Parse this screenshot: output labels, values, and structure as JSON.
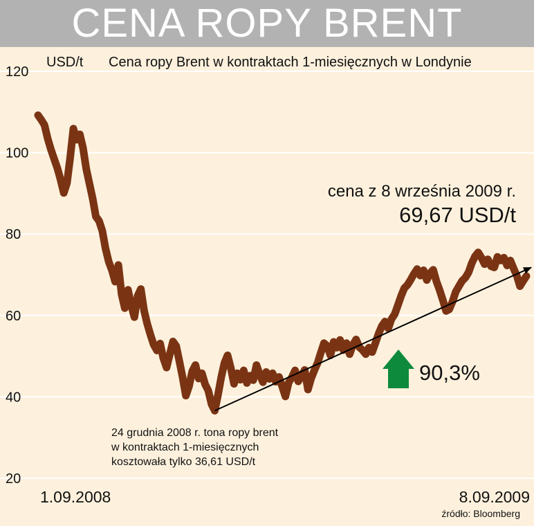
{
  "header": {
    "title": "CENA ROPY BRENT"
  },
  "chart_data": {
    "type": "line",
    "title": "Cena ropy Brent w kontraktach 1-miesięcznych w Londynie",
    "ylabel": "USD/t",
    "ylim": [
      20,
      120
    ],
    "yticks": [
      20,
      40,
      60,
      80,
      100,
      120
    ],
    "y_tick_labels": [
      "20",
      "40",
      "60",
      "80",
      "100",
      "120"
    ],
    "x_start_label": "1.09.2008",
    "x_end_label": "8.09.2009",
    "grid": "horizontal",
    "series": [
      {
        "values": [
          109.2,
          108.1,
          106.8,
          103.5,
          100.8,
          98.5,
          96.2,
          93.4,
          90.1,
          92.5,
          98.7,
          105.9,
          103.2,
          104.5,
          101.2,
          96.0,
          92.4,
          88.7,
          84.3,
          83.2,
          80.8,
          76.5,
          73.2,
          71.1,
          68.3,
          72.4,
          65.2,
          61.8,
          66.3,
          62.5,
          59.6,
          64.8,
          66.5,
          61.2,
          57.9,
          55.2,
          52.8,
          51.4,
          53.1,
          49.5,
          47.2,
          50.4,
          53.6,
          52.5,
          48.7,
          44.8,
          40.3,
          42.6,
          46.3,
          47.8,
          44.5,
          45.8,
          43.1,
          41.5,
          38.2,
          36.6,
          40.4,
          44.8,
          48.3,
          50.2,
          47.1,
          43.2,
          45.8,
          44.2,
          46.5,
          43.4,
          45.2,
          44.1,
          47.8,
          45.5,
          43.6,
          46.1,
          44.4,
          45.8,
          43.7,
          44.9,
          42.5,
          40.1,
          43.5,
          44.8,
          46.5,
          43.8,
          45.2,
          46.6,
          41.8,
          44.5,
          46.5,
          48.3,
          50.8,
          53.2,
          52.5,
          50.2,
          53.5,
          52.1,
          54.0,
          51.5,
          53.2,
          50.5,
          52.8,
          54.1,
          52.2,
          51.5,
          50.5,
          52.1,
          51.0,
          53.2,
          55.5,
          57.4,
          58.5,
          56.8,
          59.1,
          60.3,
          62.5,
          64.8,
          66.7,
          67.5,
          68.8,
          70.2,
          71.4,
          69.8,
          71.1,
          68.7,
          70.4,
          71.2,
          68.4,
          66.2,
          63.8,
          61.1,
          61.5,
          63.4,
          65.8,
          67.2,
          68.5,
          69.3,
          70.6,
          72.8,
          74.5,
          75.5,
          74.2,
          72.6,
          73.8,
          72.1,
          71.8,
          74.4,
          73.5,
          74.2,
          72.3,
          73.5,
          71.6,
          69.8,
          67.2,
          68.5,
          69.67
        ]
      }
    ],
    "trend_start": 36.6,
    "trend_end": 71.8,
    "annotations": {
      "latest_price_label": "cena z 8 września 2009 r.",
      "latest_price_value": "69,67 USD/t",
      "low_note_line1": "24 grudnia 2008 r. tona ropy brent",
      "low_note_line2": "w kontraktach 1-miesięcznych",
      "low_note_line3": "kosztowała tylko 36,61 USD/t",
      "change_percent": "90,3%"
    },
    "source": "źródło: Bloomberg",
    "colors": {
      "line": "#7a3414",
      "arrow": "#0e8a3c",
      "background": "#fdf1dd",
      "title_bar": "#b2b2b2"
    }
  }
}
